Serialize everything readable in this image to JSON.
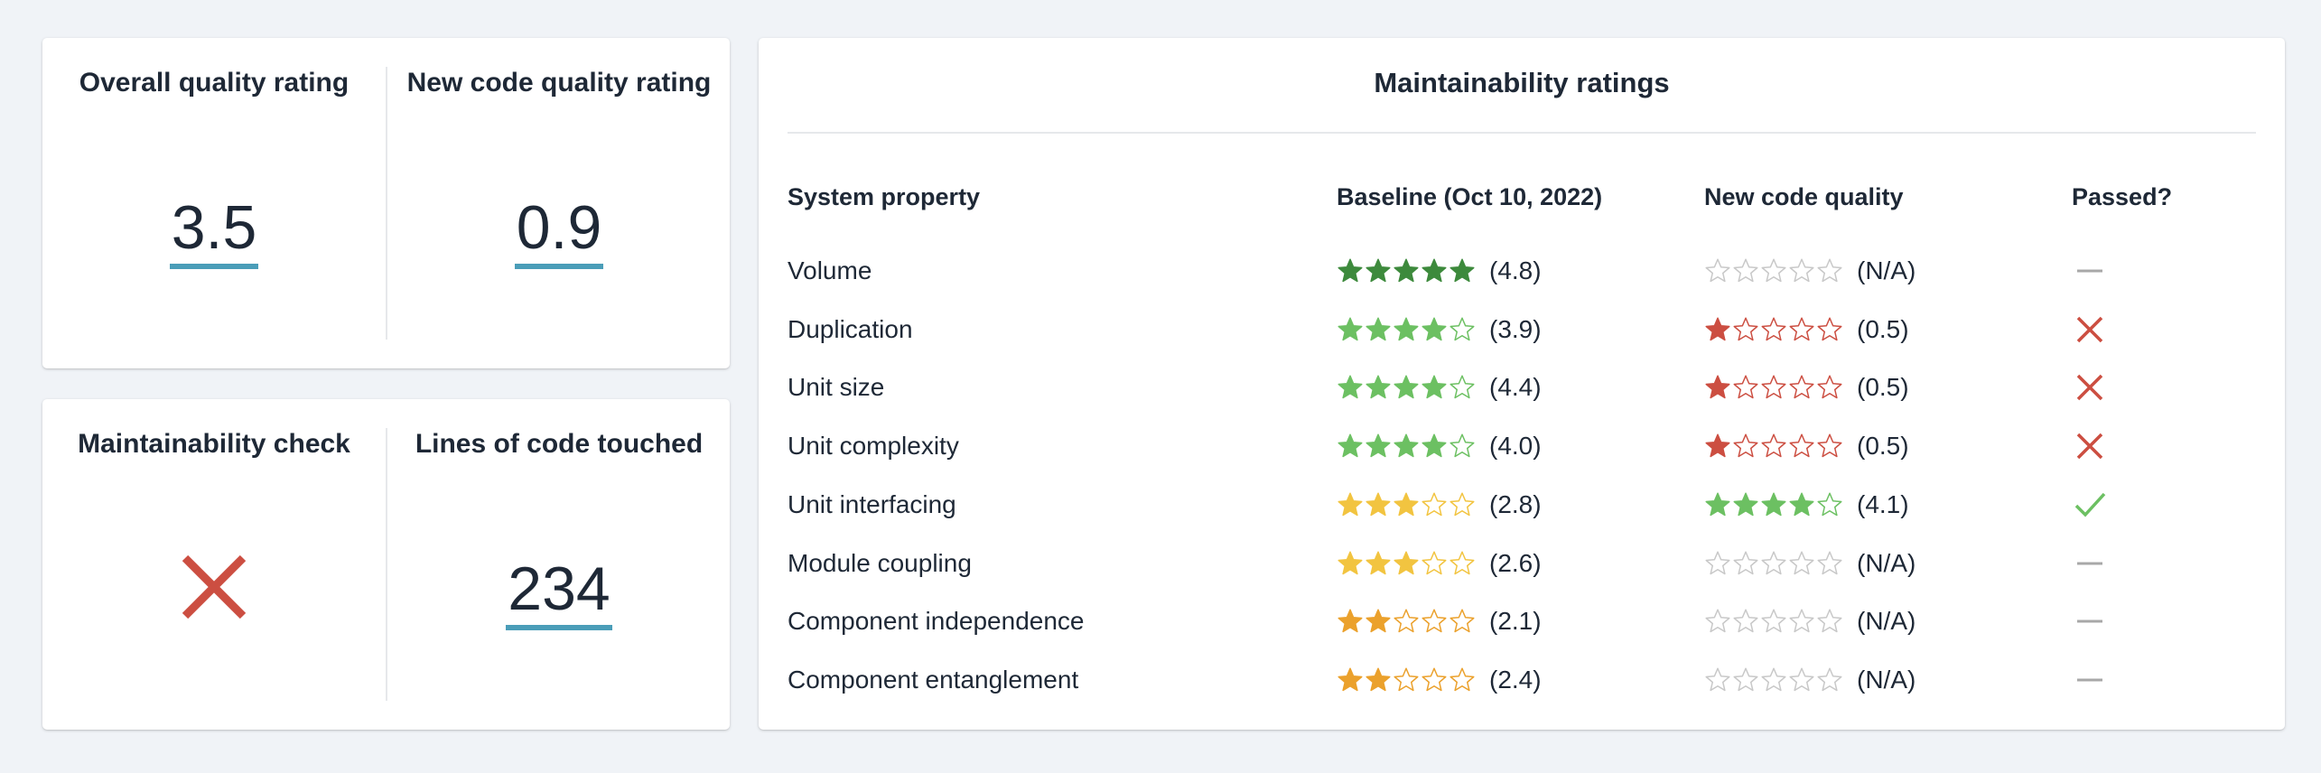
{
  "kpis": {
    "overall": {
      "title": "Overall quality rating",
      "value": "3.5"
    },
    "new_code": {
      "title": "New code quality rating",
      "value": "0.9"
    },
    "maintainability_check": {
      "title": "Maintainability check",
      "status": "failed",
      "icon": "cross-icon",
      "color": "#cc4e41"
    },
    "lines_touched": {
      "title": "Lines of code touched",
      "value": "234"
    },
    "underline_color": "#4a9db8"
  },
  "table": {
    "title": "Maintainability ratings",
    "headers": {
      "property": "System property",
      "baseline": "Baseline (Oct 10, 2022)",
      "new_code": "New code quality",
      "passed": "Passed?"
    },
    "rows": [
      {
        "property": "Volume",
        "baseline_stars": 5,
        "baseline_color": "#3d8a3c",
        "baseline_label": "(4.8)",
        "new_stars": 0,
        "new_color": "#c8c8c8",
        "new_label": "(N/A)",
        "passed": "na"
      },
      {
        "property": "Duplication",
        "baseline_stars": 4,
        "baseline_color": "#6cc062",
        "baseline_label": "(3.9)",
        "new_stars": 1,
        "new_color": "#cc4e41",
        "new_label": "(0.5)",
        "passed": "fail"
      },
      {
        "property": "Unit size",
        "baseline_stars": 4,
        "baseline_color": "#6cc062",
        "baseline_label": "(4.4)",
        "new_stars": 1,
        "new_color": "#cc4e41",
        "new_label": "(0.5)",
        "passed": "fail"
      },
      {
        "property": "Unit complexity",
        "baseline_stars": 4,
        "baseline_color": "#6cc062",
        "baseline_label": "(4.0)",
        "new_stars": 1,
        "new_color": "#cc4e41",
        "new_label": "(0.5)",
        "passed": "fail"
      },
      {
        "property": "Unit interfacing",
        "baseline_stars": 3,
        "baseline_color": "#f2c440",
        "baseline_label": "(2.8)",
        "new_stars": 4,
        "new_color": "#6cc062",
        "new_label": "(4.1)",
        "passed": "pass"
      },
      {
        "property": "Module coupling",
        "baseline_stars": 3,
        "baseline_color": "#f2c440",
        "baseline_label": "(2.6)",
        "new_stars": 0,
        "new_color": "#c8c8c8",
        "new_label": "(N/A)",
        "passed": "na"
      },
      {
        "property": "Component independence",
        "baseline_stars": 2,
        "baseline_color": "#eba12c",
        "baseline_label": "(2.1)",
        "new_stars": 0,
        "new_color": "#c8c8c8",
        "new_label": "(N/A)",
        "passed": "na"
      },
      {
        "property": "Component entanglement",
        "baseline_stars": 2,
        "baseline_color": "#eba12c",
        "baseline_label": "(2.4)",
        "new_stars": 0,
        "new_color": "#c8c8c8",
        "new_label": "(N/A)",
        "passed": "na"
      }
    ],
    "status_colors": {
      "pass": "#6cc062",
      "fail": "#cc4e41",
      "na": "#a8a8a8"
    },
    "star_count": 5
  }
}
